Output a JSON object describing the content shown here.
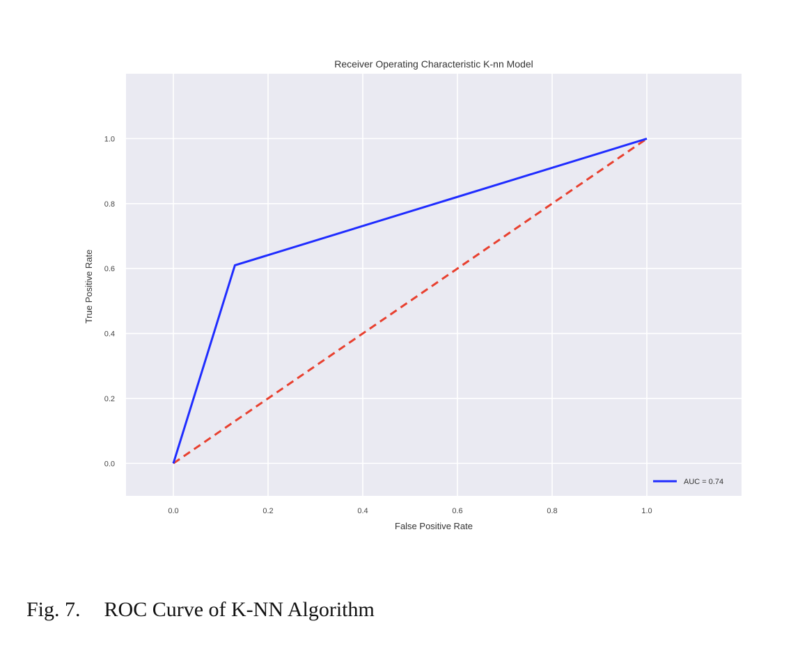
{
  "chart_data": {
    "type": "line",
    "title": "Receiver Operating Characteristic K-nn Model",
    "xlabel": "False Positive Rate",
    "ylabel": "True Positive Rate",
    "xlim": [
      -0.1,
      1.2
    ],
    "ylim": [
      -0.1,
      1.2
    ],
    "xticks": [
      "0.0",
      "0.2",
      "0.4",
      "0.6",
      "0.8",
      "1.0"
    ],
    "yticks": [
      "0.0",
      "0.2",
      "0.4",
      "0.6",
      "0.8",
      "1.0"
    ],
    "grid": true,
    "legend_position": "lower-right",
    "series": [
      {
        "name": "AUC = 0.74",
        "style": "solid",
        "color": "#1f2cff",
        "x": [
          0.0,
          0.13,
          1.0
        ],
        "y": [
          0.0,
          0.61,
          1.0
        ]
      },
      {
        "style": "dashed",
        "color": "#e8402f",
        "x": [
          0.0,
          1.0
        ],
        "y": [
          0.0,
          1.0
        ]
      }
    ]
  },
  "caption": {
    "number": "Fig. 7.",
    "text": "ROC Curve of K-NN Algorithm"
  }
}
